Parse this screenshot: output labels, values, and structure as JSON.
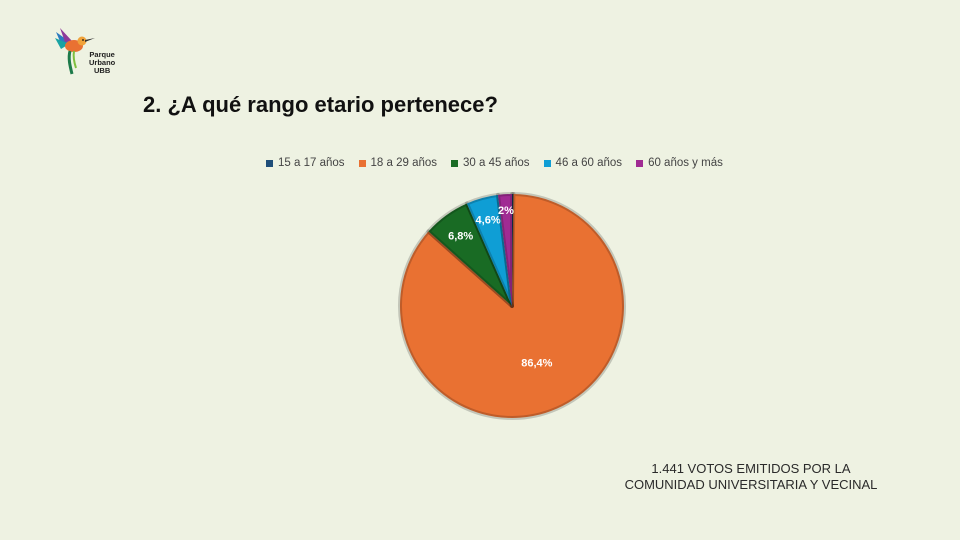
{
  "logo": {
    "icon": "hummingbird-icon",
    "line1": "Parque",
    "line2": "Urbano",
    "line3": "UBB"
  },
  "title": "2. ¿A qué rango etario pertenece?",
  "chart_data": {
    "type": "pie",
    "title": "",
    "legend_position": "top",
    "categories": [
      "15 a 17 años",
      "18 a 29 años",
      "30 a 45 años",
      "46 a 60 años",
      "60 años y más"
    ],
    "values": [
      0.2,
      86.4,
      6.8,
      4.6,
      2.0
    ],
    "labels": [
      "",
      "86,4%",
      "6,8%",
      "4,6%",
      "2%"
    ],
    "colors": [
      "#1f4e79",
      "#e97132",
      "#196b24",
      "#0f9ed5",
      "#a02b93"
    ]
  },
  "footer": {
    "line1": "1.441 VOTOS EMITIDOS POR LA",
    "line2": "COMUNIDAD UNIVERSITARIA Y VECINAL"
  }
}
